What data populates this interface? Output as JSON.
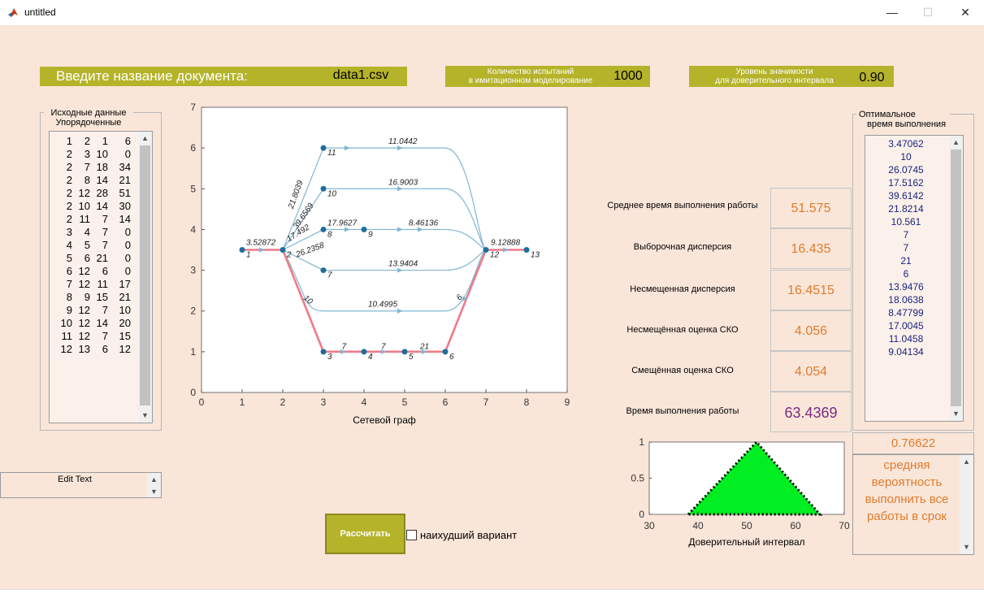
{
  "window": {
    "title": "untitled",
    "min_glyph": "—",
    "max_glyph": "☐",
    "close_glyph": "✕"
  },
  "header": {
    "doc_label": "Введите название документа:",
    "doc_value": "data1.csv",
    "trials_label_1": "Количество испытаний",
    "trials_label_2": "в имитационном моделирование",
    "trials_value": "1000",
    "signif_label_1": "Уровень значимости",
    "signif_label_2": "для доверительного интервала",
    "signif_value": "0.90"
  },
  "source_data": {
    "title_1": "Исходные данные",
    "title_2": "Упорядоченные",
    "rows": [
      [
        "1",
        "2",
        "1",
        "6"
      ],
      [
        "2",
        "3",
        "10",
        "0"
      ],
      [
        "2",
        "7",
        "18",
        "34"
      ],
      [
        "2",
        "8",
        "14",
        "21"
      ],
      [
        "2",
        "12",
        "28",
        "51"
      ],
      [
        "2",
        "10",
        "14",
        "30"
      ],
      [
        "2",
        "11",
        "7",
        "14"
      ],
      [
        "3",
        "4",
        "7",
        "0"
      ],
      [
        "4",
        "5",
        "7",
        "0"
      ],
      [
        "5",
        "6",
        "21",
        "0"
      ],
      [
        "6",
        "12",
        "6",
        "0"
      ],
      [
        "7",
        "12",
        "11",
        "17"
      ],
      [
        "8",
        "9",
        "15",
        "21"
      ],
      [
        "9",
        "12",
        "7",
        "10"
      ],
      [
        "10",
        "12",
        "14",
        "20"
      ],
      [
        "11",
        "12",
        "7",
        "15"
      ],
      [
        "12",
        "13",
        "6",
        "12"
      ]
    ]
  },
  "edit_text": {
    "value": "Edit Text"
  },
  "network_chart": {
    "xlabel": "Сетевой граф",
    "nodes": [
      {
        "id": "1",
        "x": 1,
        "y": 3.5
      },
      {
        "id": "2",
        "x": 2,
        "y": 3.5
      },
      {
        "id": "3",
        "x": 3,
        "y": 1
      },
      {
        "id": "4",
        "x": 4,
        "y": 1
      },
      {
        "id": "5",
        "x": 5,
        "y": 1
      },
      {
        "id": "6",
        "x": 6,
        "y": 1
      },
      {
        "id": "7",
        "x": 3,
        "y": 3
      },
      {
        "id": "8",
        "x": 3,
        "y": 4
      },
      {
        "id": "9",
        "x": 4,
        "y": 4
      },
      {
        "id": "10",
        "x": 3,
        "y": 5
      },
      {
        "id": "11",
        "x": 3,
        "y": 6
      },
      {
        "id": "12",
        "x": 7,
        "y": 3.5
      },
      {
        "id": "13",
        "x": 8,
        "y": 3.5
      }
    ],
    "edge_labels": [
      "3.52872",
      "21.8039",
      "39.6569",
      "17.492",
      "26.2358",
      "10",
      "17.9627",
      "8.46136",
      "11.0442",
      "16.9003",
      "13.9404",
      "10.4995",
      "9.12888",
      "7",
      "7",
      "21",
      "6"
    ],
    "xticks": [
      "0",
      "1",
      "2",
      "3",
      "4",
      "5",
      "6",
      "7",
      "8",
      "9"
    ],
    "yticks": [
      "0",
      "1",
      "2",
      "3",
      "4",
      "5",
      "6",
      "7"
    ],
    "colors": {
      "edge": "#7fb6d6",
      "critical": "#f07a86",
      "node": "#1f6e9c"
    }
  },
  "stats": {
    "mean_label": "Среднее время выполнения работы",
    "mean_value": "51.575",
    "sample_var_label": "Выборочная дисперсия",
    "sample_var_value": "16.435",
    "unbiased_var_label": "Несмещенная дисперсия",
    "unbiased_var_value": "16.4515",
    "unbiased_sd_label": "Несмещённая оценка СКО",
    "unbiased_sd_value": "4.056",
    "biased_sd_label": "Смещённая оценка СКО",
    "biased_sd_value": "4.054",
    "time_label": "Время выполнения работы",
    "time_value": "63.4369"
  },
  "optimal": {
    "title_1": "Оптимальное",
    "title_2": "время выполнения",
    "items": [
      "3.47062",
      "10",
      "26.0745",
      "17.5162",
      "39.6142",
      "21.8214",
      "10.561",
      "7",
      "7",
      "21",
      "6",
      "13.9476",
      "18.0638",
      "8.47799",
      "17.0045",
      "11.0458",
      "9.04134"
    ]
  },
  "probability": {
    "value": "0.76622",
    "text": "средняя вероятность выполнить все работы в срок"
  },
  "chart_data": {
    "type": "area",
    "xlabel": "Доверительный интервал",
    "x": [
      38,
      52,
      65
    ],
    "y": [
      0,
      1,
      0
    ],
    "xlim": [
      30,
      70
    ],
    "ylim": [
      0,
      1
    ],
    "xticks": [
      "30",
      "40",
      "50",
      "60",
      "70"
    ],
    "yticks": [
      "0",
      "0.5",
      "1"
    ],
    "fill_color": "#00ee22",
    "edge_style": "dotted black"
  },
  "controls": {
    "calc_label": "Рассчитать",
    "worst_label": "наихудший вариант"
  }
}
